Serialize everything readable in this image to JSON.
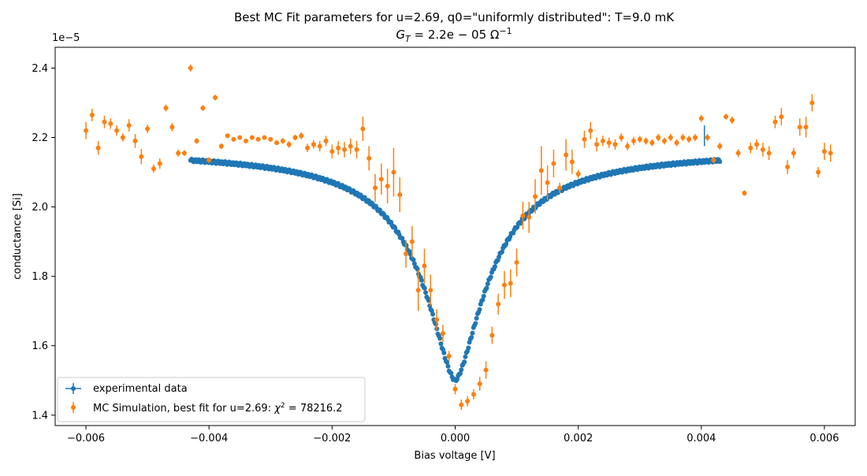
{
  "chart_data": {
    "type": "scatter",
    "title": "Best MC Fit parameters for u=2.69, q0=\"uniformly distributed\":  T=9.0 mK",
    "subtitle": "G_T = 2.2e−05 Ω⁻¹",
    "subtitle_parts": {
      "g": "G",
      "t": "T",
      "eq": " = 2.2e − 05 Ω",
      "sup": "−1"
    },
    "xlabel": "Bias voltage [V]",
    "ylabel": "conductance [Si]",
    "y_offset_label": "1e−5",
    "xlim": [
      -0.0065,
      0.0065
    ],
    "ylim": [
      1.37,
      2.46
    ],
    "x_ticks": [
      -0.006,
      -0.004,
      -0.002,
      0.0,
      0.002,
      0.004,
      0.006
    ],
    "x_tick_labels": [
      "−0.006",
      "−0.004",
      "−0.002",
      "0.000",
      "0.002",
      "0.004",
      "0.006"
    ],
    "y_ticks": [
      1.4,
      1.6,
      1.8,
      2.0,
      2.2,
      2.4
    ],
    "y_tick_labels": [
      "1.4",
      "1.6",
      "1.8",
      "2.0",
      "2.2",
      "2.4"
    ],
    "grid": false,
    "legend_placement": "lower-left",
    "series": [
      {
        "name": "experimental data",
        "color": "#1f77b4",
        "model": {
          "x_min": -0.0043,
          "x_max": 0.0043,
          "y_min": 1.5,
          "y_flat": 2.165,
          "width": 0.00065
        }
      },
      {
        "name": "MC Simulation, best fit for u=2.69:  χ² = 78216.2",
        "legend_parts": {
          "text": "MC Simulation, best fit for u=2.69:  ",
          "chi": "χ",
          "sup": "2",
          "eq": " = 78216.2"
        },
        "color": "#ff7f0e",
        "points": [
          [
            -0.006,
            2.22,
            0.025
          ],
          [
            -0.0059,
            2.265,
            0.018
          ],
          [
            -0.0058,
            2.17,
            0.02
          ],
          [
            -0.0057,
            2.245,
            0.018
          ],
          [
            -0.0056,
            2.24,
            0.015
          ],
          [
            -0.0055,
            2.22,
            0.015
          ],
          [
            -0.0054,
            2.2,
            0.012
          ],
          [
            -0.0053,
            2.235,
            0.018
          ],
          [
            -0.0052,
            2.19,
            0.02
          ],
          [
            -0.0051,
            2.145,
            0.022
          ],
          [
            -0.005,
            2.225,
            0.012
          ],
          [
            -0.0049,
            2.11,
            0.012
          ],
          [
            -0.0048,
            2.125,
            0.015
          ],
          [
            -0.0047,
            2.285,
            0.01
          ],
          [
            -0.0046,
            2.23,
            0.012
          ],
          [
            -0.0045,
            2.155,
            0.01
          ],
          [
            -0.0044,
            2.155,
            0.008
          ],
          [
            -0.0043,
            2.4,
            0.01
          ],
          [
            -0.0042,
            2.19,
            0.008
          ],
          [
            -0.0041,
            2.285,
            0.008
          ],
          [
            -0.004,
            2.135,
            0.008
          ],
          [
            -0.0039,
            2.315,
            0.008
          ],
          [
            -0.0038,
            2.175,
            0.008
          ],
          [
            -0.0037,
            2.205,
            0.006
          ],
          [
            -0.0036,
            2.195,
            0.006
          ],
          [
            -0.0035,
            2.2,
            0.006
          ],
          [
            -0.0034,
            2.19,
            0.006
          ],
          [
            -0.0033,
            2.2,
            0.006
          ],
          [
            -0.0032,
            2.195,
            0.006
          ],
          [
            -0.0031,
            2.2,
            0.006
          ],
          [
            -0.003,
            2.195,
            0.006
          ],
          [
            -0.0029,
            2.185,
            0.006
          ],
          [
            -0.0028,
            2.19,
            0.008
          ],
          [
            -0.0027,
            2.18,
            0.01
          ],
          [
            -0.0026,
            2.2,
            0.008
          ],
          [
            -0.0025,
            2.205,
            0.01
          ],
          [
            -0.0024,
            2.17,
            0.012
          ],
          [
            -0.0023,
            2.18,
            0.012
          ],
          [
            -0.0022,
            2.175,
            0.015
          ],
          [
            -0.0021,
            2.19,
            0.015
          ],
          [
            -0.002,
            2.16,
            0.02
          ],
          [
            -0.0019,
            2.17,
            0.02
          ],
          [
            -0.0018,
            2.165,
            0.022
          ],
          [
            -0.0017,
            2.175,
            0.022
          ],
          [
            -0.0016,
            2.165,
            0.025
          ],
          [
            -0.0015,
            2.225,
            0.035
          ],
          [
            -0.0014,
            2.14,
            0.035
          ],
          [
            -0.0013,
            2.055,
            0.04
          ],
          [
            -0.0012,
            2.08,
            0.045
          ],
          [
            -0.0011,
            2.06,
            0.05
          ],
          [
            -0.001,
            2.1,
            0.07
          ],
          [
            -0.0009,
            2.035,
            0.05
          ],
          [
            -0.0008,
            1.865,
            0.04
          ],
          [
            -0.0007,
            1.9,
            0.045
          ],
          [
            -0.0006,
            1.76,
            0.06
          ],
          [
            -0.0005,
            1.83,
            0.05
          ],
          [
            -0.0004,
            1.76,
            0.045
          ],
          [
            -0.0003,
            1.675,
            0.03
          ],
          [
            -0.0002,
            1.635,
            0.025
          ],
          [
            -0.0001,
            1.57,
            0.015
          ],
          [
            0.0,
            1.475,
            0.015
          ],
          [
            0.0001,
            1.43,
            0.015
          ],
          [
            0.0002,
            1.44,
            0.015
          ],
          [
            0.0003,
            1.46,
            0.015
          ],
          [
            0.0004,
            1.49,
            0.02
          ],
          [
            0.0005,
            1.53,
            0.025
          ],
          [
            0.0006,
            1.63,
            0.025
          ],
          [
            0.0007,
            1.72,
            0.03
          ],
          [
            0.0008,
            1.775,
            0.04
          ],
          [
            0.0009,
            1.78,
            0.04
          ],
          [
            0.001,
            1.84,
            0.04
          ],
          [
            0.0011,
            1.975,
            0.04
          ],
          [
            0.0012,
            1.97,
            0.045
          ],
          [
            0.0013,
            2.03,
            0.05
          ],
          [
            0.0014,
            2.105,
            0.07
          ],
          [
            0.0015,
            2.07,
            0.05
          ],
          [
            0.0016,
            2.125,
            0.04
          ],
          [
            0.0017,
            2.055,
            0.015
          ],
          [
            0.0018,
            2.15,
            0.045
          ],
          [
            0.0019,
            2.13,
            0.035
          ],
          [
            0.002,
            2.095,
            0.012
          ],
          [
            0.0021,
            2.195,
            0.025
          ],
          [
            0.0022,
            2.22,
            0.025
          ],
          [
            0.0023,
            2.18,
            0.02
          ],
          [
            0.0024,
            2.19,
            0.015
          ],
          [
            0.0025,
            2.185,
            0.015
          ],
          [
            0.0026,
            2.18,
            0.015
          ],
          [
            0.0027,
            2.2,
            0.012
          ],
          [
            0.0028,
            2.175,
            0.012
          ],
          [
            0.0029,
            2.19,
            0.012
          ],
          [
            0.003,
            2.195,
            0.01
          ],
          [
            0.0031,
            2.19,
            0.01
          ],
          [
            0.0032,
            2.185,
            0.01
          ],
          [
            0.0033,
            2.2,
            0.01
          ],
          [
            0.0034,
            2.19,
            0.01
          ],
          [
            0.0035,
            2.2,
            0.01
          ],
          [
            0.0036,
            2.185,
            0.01
          ],
          [
            0.0037,
            2.2,
            0.01
          ],
          [
            0.0038,
            2.195,
            0.01
          ],
          [
            0.0039,
            2.2,
            0.01
          ],
          [
            0.004,
            2.255,
            0.01
          ],
          [
            0.0041,
            2.2,
            0.01
          ],
          [
            0.0042,
            2.135,
            0.01
          ],
          [
            0.0043,
            2.175,
            0.01
          ],
          [
            0.0044,
            2.26,
            0.008
          ],
          [
            0.0045,
            2.25,
            0.01
          ],
          [
            0.0046,
            2.155,
            0.012
          ],
          [
            0.0047,
            2.04,
            0.008
          ],
          [
            0.0048,
            2.17,
            0.015
          ],
          [
            0.0049,
            2.18,
            0.015
          ],
          [
            0.005,
            2.165,
            0.02
          ],
          [
            0.0051,
            2.155,
            0.02
          ],
          [
            0.0052,
            2.245,
            0.018
          ],
          [
            0.0053,
            2.26,
            0.025
          ],
          [
            0.0054,
            2.115,
            0.02
          ],
          [
            0.0055,
            2.155,
            0.015
          ],
          [
            0.0056,
            2.23,
            0.025
          ],
          [
            0.0057,
            2.23,
            0.03
          ],
          [
            0.0058,
            2.3,
            0.025
          ],
          [
            0.0059,
            2.1,
            0.015
          ],
          [
            0.006,
            2.16,
            0.025
          ],
          [
            0.0061,
            2.155,
            0.025
          ]
        ]
      }
    ]
  }
}
